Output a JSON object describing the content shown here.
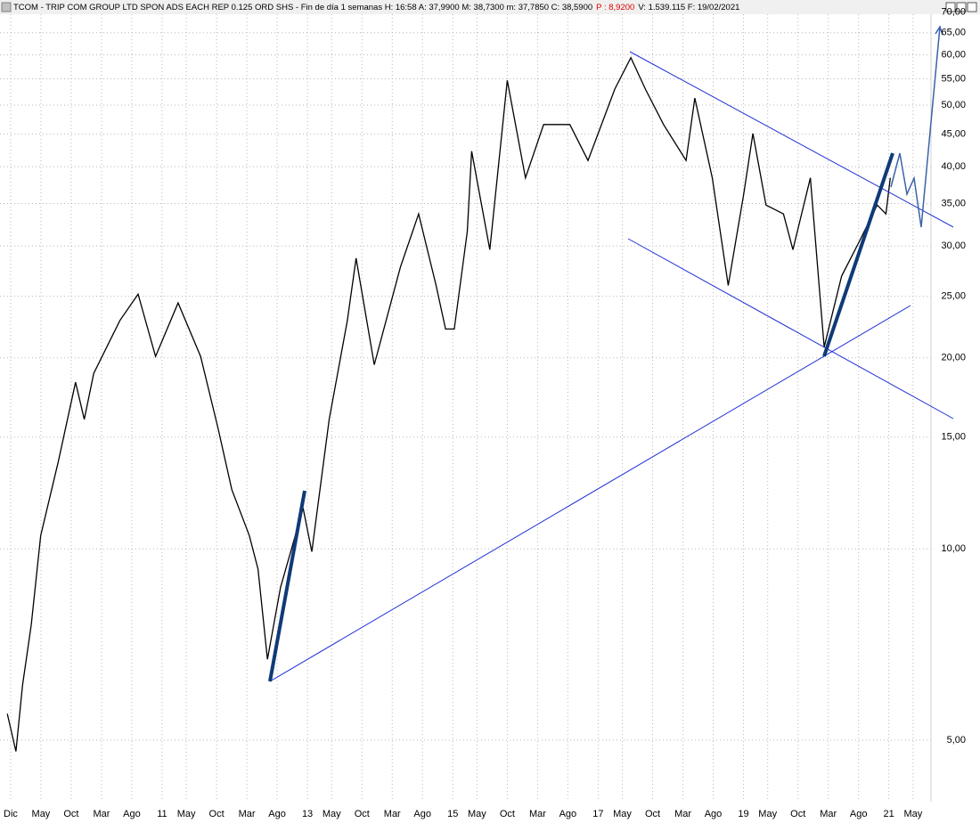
{
  "header": {
    "left": "TCOM - TRIP COM GROUP LTD SPON ADS EACH REP 0.125 ORD SHS - Fin de día 1 semanas  H: 16:58  A: 37,9900  M: 38,7300  m: 37,7850  C: 38,5900",
    "p": "P : 8,9200",
    "right": "V: 1.539.115  F: 19/02/2021"
  },
  "chart_data": {
    "type": "line",
    "log_scale": true,
    "grid": true,
    "xlim": [
      2008.77,
      2021.58
    ],
    "ylim": [
      4.0,
      73.2
    ],
    "xticks": [
      {
        "value": 2008.917,
        "label": "Dic"
      },
      {
        "value": 2009.333,
        "label": "May"
      },
      {
        "value": 2009.75,
        "label": "Oct"
      },
      {
        "value": 2010.167,
        "label": "Mar"
      },
      {
        "value": 2010.583,
        "label": "Ago"
      },
      {
        "value": 2011,
        "label": "11"
      },
      {
        "value": 2011.333,
        "label": "May"
      },
      {
        "value": 2011.75,
        "label": "Oct"
      },
      {
        "value": 2012.167,
        "label": "Mar"
      },
      {
        "value": 2012.583,
        "label": "Ago"
      },
      {
        "value": 2013,
        "label": "13"
      },
      {
        "value": 2013.333,
        "label": "May"
      },
      {
        "value": 2013.75,
        "label": "Oct"
      },
      {
        "value": 2014.167,
        "label": "Mar"
      },
      {
        "value": 2014.583,
        "label": "Ago"
      },
      {
        "value": 2015,
        "label": "15"
      },
      {
        "value": 2015.333,
        "label": "May"
      },
      {
        "value": 2015.75,
        "label": "Oct"
      },
      {
        "value": 2016.167,
        "label": "Mar"
      },
      {
        "value": 2016.583,
        "label": "Ago"
      },
      {
        "value": 2017,
        "label": "17"
      },
      {
        "value": 2017.333,
        "label": "May"
      },
      {
        "value": 2017.75,
        "label": "Oct"
      },
      {
        "value": 2018.167,
        "label": "Mar"
      },
      {
        "value": 2018.583,
        "label": "Ago"
      },
      {
        "value": 2019,
        "label": "19"
      },
      {
        "value": 2019.333,
        "label": "May"
      },
      {
        "value": 2019.75,
        "label": "Oct"
      },
      {
        "value": 2020.167,
        "label": "Mar"
      },
      {
        "value": 2020.583,
        "label": "Ago"
      },
      {
        "value": 2021,
        "label": "21"
      },
      {
        "value": 2021.333,
        "label": "May"
      }
    ],
    "yticks": [
      {
        "value": 5,
        "label": "5,00"
      },
      {
        "value": 10,
        "label": "10,00"
      },
      {
        "value": 15,
        "label": "15,00"
      },
      {
        "value": 20,
        "label": "20,00"
      },
      {
        "value": 25,
        "label": "25,00"
      },
      {
        "value": 30,
        "label": "30,00"
      },
      {
        "value": 35,
        "label": "35,00"
      },
      {
        "value": 40,
        "label": "40,00"
      },
      {
        "value": 45,
        "label": "45,00"
      },
      {
        "value": 50,
        "label": "50,00"
      },
      {
        "value": 55,
        "label": "55,00"
      },
      {
        "value": 60,
        "label": "60,00"
      },
      {
        "value": 65,
        "label": "65,00"
      },
      {
        "value": 70,
        "label": "70,00"
      }
    ],
    "series": [
      {
        "color": "#000000",
        "x": [
          2008.87,
          2008.99,
          2009.08,
          2009.2,
          2009.33,
          2009.57,
          2009.81,
          2009.93,
          2010.06,
          2010.42,
          2010.67,
          2010.91,
          2011.22,
          2011.53,
          2011.77,
          2011.96,
          2012.2,
          2012.32,
          2012.45,
          2012.63,
          2012.94,
          2013.06,
          2013.3,
          2013.55,
          2013.67,
          2013.92,
          2014.28,
          2014.53,
          2014.77,
          2014.9,
          2015.02,
          2015.2,
          2015.26,
          2015.51,
          2015.75,
          2016.0,
          2016.25,
          2016.61,
          2016.86,
          2017.23,
          2017.45,
          2017.65,
          2017.9,
          2018.21,
          2018.33,
          2018.57,
          2018.79,
          2019.0,
          2019.13,
          2019.31,
          2019.55,
          2019.68,
          2019.92,
          2020.04,
          2020.11,
          2020.35,
          2020.6,
          2020.84,
          2020.96,
          2021.02
        ],
        "values": [
          5.5,
          4.8,
          6.1,
          7.6,
          10.5,
          13.7,
          18.3,
          16.0,
          18.9,
          22.9,
          25.2,
          20.1,
          24.4,
          20.1,
          15.5,
          12.4,
          10.5,
          9.3,
          6.7,
          8.7,
          11.6,
          9.9,
          16.0,
          22.9,
          28.7,
          19.5,
          27.8,
          33.7,
          26.0,
          22.2,
          22.2,
          31.6,
          42.3,
          29.6,
          54.7,
          38.4,
          46.6,
          46.6,
          40.9,
          53.0,
          59.4,
          53.0,
          46.6,
          40.9,
          51.3,
          38.4,
          26.0,
          36.0,
          45.1,
          34.8,
          33.7,
          29.6,
          38.4,
          26.0,
          20.8,
          26.9,
          30.6,
          34.8,
          33.7,
          38.4
        ]
      }
    ]
  }
}
